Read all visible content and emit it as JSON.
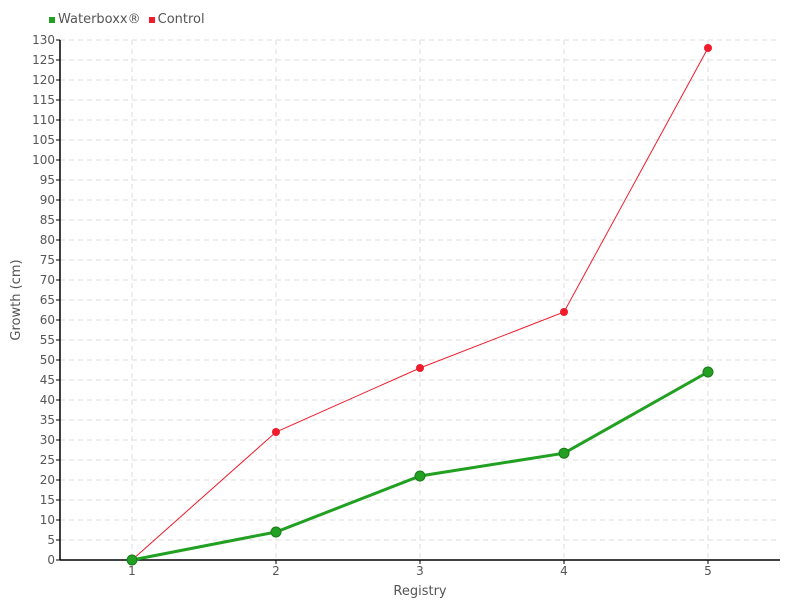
{
  "chart_data": {
    "type": "line",
    "title": "",
    "xlabel": "Registry",
    "ylabel": "Growth (cm)",
    "x": [
      1,
      2,
      3,
      4,
      5
    ],
    "xlim": [
      0.5,
      5.5
    ],
    "ylim": [
      0,
      130
    ],
    "ytick_step": 5,
    "grid": true,
    "legend_position": "top-left",
    "series": [
      {
        "name": "Waterboxx®",
        "color": "#22a022",
        "values": [
          0,
          7,
          21,
          26.7,
          47
        ]
      },
      {
        "name": "Control",
        "color": "#ee1c2c",
        "values": [
          0,
          32,
          48,
          62,
          128
        ]
      }
    ]
  }
}
